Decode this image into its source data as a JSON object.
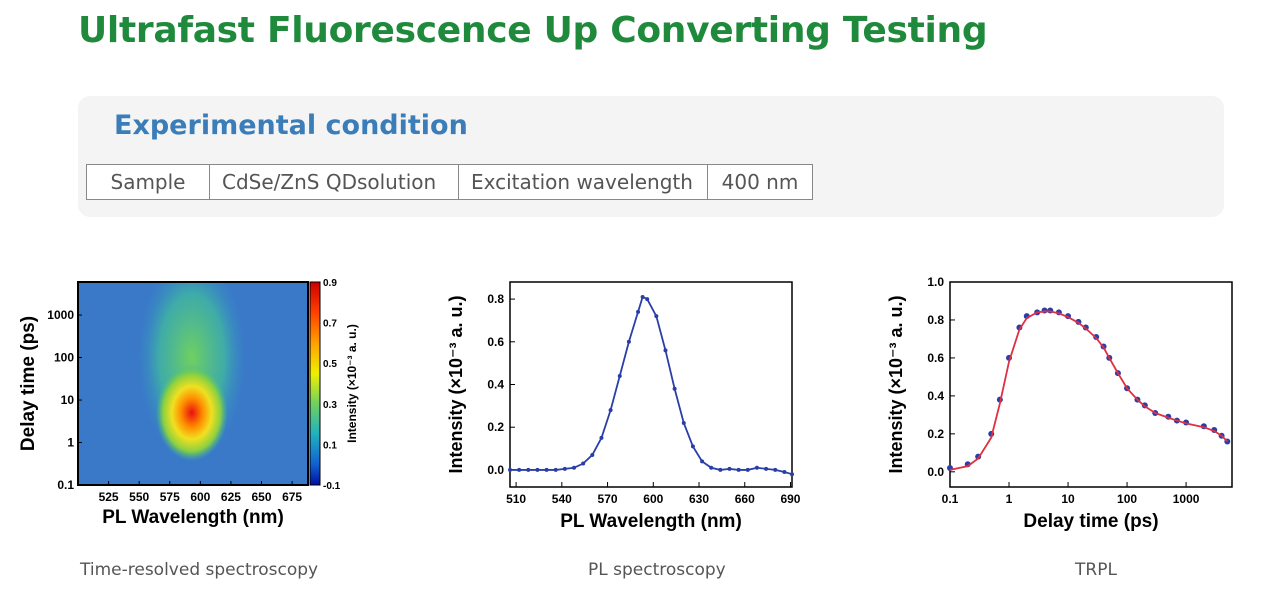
{
  "page_title": "Ultrafast Fluorescence Up Converting Testing",
  "panel": {
    "title": "Experimental condition",
    "table": [
      "Sample",
      "CdSe/ZnS QDsolution",
      "Excitation wavelength",
      "400 nm"
    ]
  },
  "captions": [
    "Time-resolved spectroscopy",
    "PL spectroscopy",
    "TRPL"
  ],
  "colors": {
    "title_green": "#1f8a3c",
    "panel_blue": "#3a7db8",
    "series_blue": "#2a3ea8",
    "fit_red": "#e03040"
  },
  "chart_data": [
    {
      "type": "heatmap",
      "xlabel": "PL Wavelength (nm)",
      "ylabel": "Delay time (ps)",
      "colorbar_label": "Intensity (×10⁻³ a. u.)",
      "x_ticks": [
        "525",
        "550",
        "575",
        "600",
        "625",
        "650",
        "675"
      ],
      "x_tick_values": [
        525,
        550,
        575,
        600,
        625,
        650,
        675
      ],
      "xlim": [
        500,
        688
      ],
      "y_scale": "log",
      "y_ticks": [
        "0.1",
        "1",
        "10",
        "100",
        "1000"
      ],
      "y_tick_values": [
        0.1,
        1,
        10,
        100,
        1000
      ],
      "ylim": [
        0.1,
        6000
      ],
      "colorbar_ticks": [
        "0.9",
        "0.7",
        "0.5",
        "0.3",
        "0.1",
        "-0.1"
      ],
      "colorbar_tick_values": [
        0.9,
        0.7,
        0.5,
        0.3,
        0.1,
        -0.1
      ],
      "colorbar_range": [
        -0.1,
        0.9
      ],
      "peak": {
        "wavelength": 593,
        "delay": 5,
        "value": 0.9
      }
    },
    {
      "type": "line",
      "xlabel": "PL Wavelength (nm)",
      "ylabel": "Intensity (×10⁻³ a. u.)",
      "x_ticks": [
        "510",
        "540",
        "570",
        "600",
        "630",
        "660",
        "690"
      ],
      "x_tick_values": [
        510,
        540,
        570,
        600,
        630,
        660,
        690
      ],
      "y_ticks": [
        "0.0",
        "0.2",
        "0.4",
        "0.6",
        "0.8"
      ],
      "y_tick_values": [
        0.0,
        0.2,
        0.4,
        0.6,
        0.8
      ],
      "xlim": [
        506,
        691
      ],
      "ylim": [
        -0.08,
        0.88
      ],
      "grid": false,
      "series": [
        {
          "x": [
            506,
            512,
            518,
            524,
            530,
            536,
            542,
            548,
            554,
            560,
            566,
            572,
            578,
            584,
            590,
            593,
            596,
            602,
            608,
            614,
            620,
            626,
            632,
            638,
            644,
            650,
            656,
            662,
            668,
            674,
            680,
            686,
            691
          ],
          "y": [
            0.0,
            0.0,
            0.0,
            0.0,
            0.0,
            0.0,
            0.005,
            0.01,
            0.03,
            0.07,
            0.15,
            0.28,
            0.44,
            0.6,
            0.74,
            0.81,
            0.8,
            0.72,
            0.56,
            0.38,
            0.22,
            0.11,
            0.04,
            0.01,
            0.0,
            0.005,
            0.0,
            0.0,
            0.01,
            0.005,
            0.0,
            -0.01,
            -0.02
          ]
        }
      ]
    },
    {
      "type": "scatter",
      "xlabel": "Delay time (ps)",
      "ylabel": "Intensity (×10⁻³ a. u.)",
      "x_scale": "log",
      "x_ticks": [
        "0.1",
        "1",
        "10",
        "100",
        "1000"
      ],
      "x_tick_values": [
        0.1,
        1,
        10,
        100,
        1000
      ],
      "y_ticks": [
        "0.0",
        "0.2",
        "0.4",
        "0.6",
        "0.8",
        "1.0"
      ],
      "y_tick_values": [
        0.0,
        0.2,
        0.4,
        0.6,
        0.8,
        1.0
      ],
      "xlim": [
        0.1,
        6000
      ],
      "ylim": [
        -0.08,
        1.0
      ],
      "series": [
        {
          "x": [
            0.1,
            0.2,
            0.3,
            0.5,
            0.7,
            1,
            1.5,
            2,
            3,
            4,
            5,
            7,
            10,
            15,
            20,
            30,
            40,
            50,
            70,
            100,
            150,
            200,
            300,
            500,
            700,
            1000,
            2000,
            3000,
            4000,
            5000
          ],
          "y": [
            0.02,
            0.04,
            0.08,
            0.2,
            0.38,
            0.6,
            0.76,
            0.82,
            0.84,
            0.85,
            0.85,
            0.84,
            0.82,
            0.79,
            0.76,
            0.71,
            0.66,
            0.6,
            0.52,
            0.44,
            0.38,
            0.35,
            0.31,
            0.29,
            0.27,
            0.26,
            0.24,
            0.22,
            0.19,
            0.16
          ]
        },
        {
          "x": [
            0.1,
            0.2,
            0.3,
            0.5,
            0.7,
            1,
            1.5,
            2,
            3,
            4,
            5,
            7,
            10,
            15,
            20,
            30,
            40,
            50,
            70,
            100,
            150,
            200,
            300,
            500,
            700,
            1000,
            2000,
            3000,
            4000,
            5000
          ],
          "y": [
            0.01,
            0.03,
            0.07,
            0.18,
            0.36,
            0.58,
            0.75,
            0.81,
            0.84,
            0.845,
            0.845,
            0.835,
            0.815,
            0.785,
            0.755,
            0.705,
            0.655,
            0.6,
            0.52,
            0.44,
            0.38,
            0.345,
            0.31,
            0.285,
            0.27,
            0.255,
            0.235,
            0.215,
            0.19,
            0.16
          ]
        }
      ]
    }
  ]
}
